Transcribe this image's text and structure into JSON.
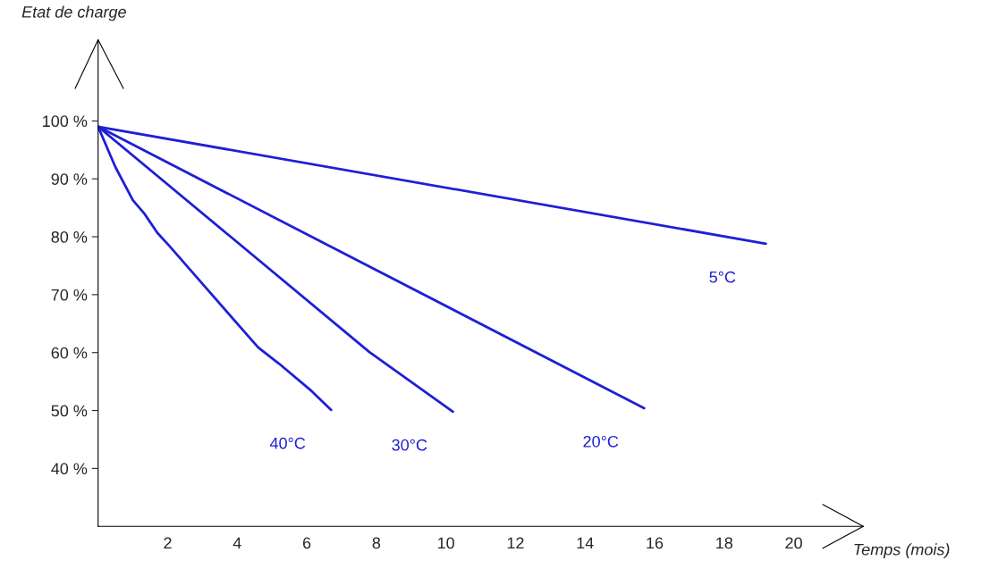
{
  "chart_data": {
    "type": "line",
    "title": "Etat de charge",
    "xlabel": "Temps (mois)",
    "xlim": [
      0,
      22
    ],
    "xticks": [
      2,
      4,
      6,
      8,
      10,
      12,
      14,
      16,
      18,
      20
    ],
    "ylim": [
      30,
      114
    ],
    "yticks": [
      {
        "value": 40,
        "label": "40 %"
      },
      {
        "value": 50,
        "label": "50 %"
      },
      {
        "value": 60,
        "label": "60 %"
      },
      {
        "value": 70,
        "label": "70 %"
      },
      {
        "value": 80,
        "label": "80 %"
      },
      {
        "value": 90,
        "label": "90 %"
      },
      {
        "value": 100,
        "label": "100 %"
      }
    ],
    "grid": false,
    "legend": false,
    "marker": "none",
    "line_style": "solid",
    "series": [
      {
        "name": "5°C",
        "color": "#1f1fd6",
        "x": [
          0,
          19.2
        ],
        "values": [
          99,
          78.8
        ]
      },
      {
        "name": "20°C",
        "color": "#1f1fd6",
        "x": [
          0,
          15.7
        ],
        "values": [
          99,
          50.4
        ]
      },
      {
        "name": "30°C",
        "color": "#1f1fd6",
        "x": [
          0,
          7.8,
          10.2
        ],
        "values": [
          99,
          60.1,
          49.8
        ]
      },
      {
        "name": "40°C",
        "color": "#1f1fd6",
        "x": [
          0,
          0.5,
          1.0,
          1.33,
          1.7,
          2.05,
          4.6,
          5.2,
          6.15,
          6.7
        ],
        "values": [
          99,
          92,
          86.3,
          84,
          80.7,
          78.4,
          60.9,
          58.1,
          53.3,
          50.1
        ]
      }
    ]
  }
}
